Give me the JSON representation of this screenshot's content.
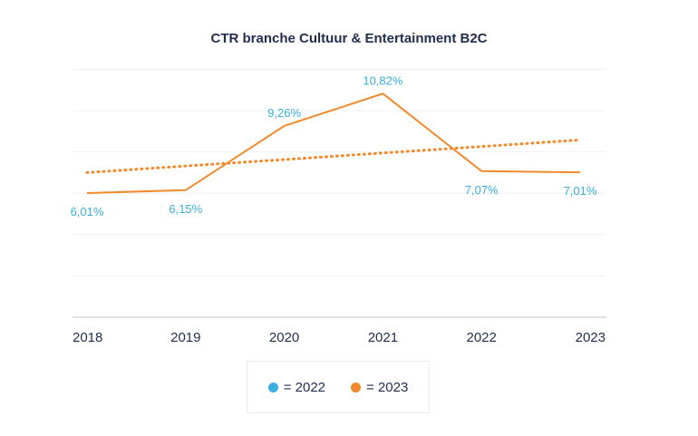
{
  "chart_data": {
    "type": "line",
    "title": "CTR branche Cultuur & Entertainment B2C",
    "categories": [
      "2018",
      "2019",
      "2020",
      "2021",
      "2022",
      "2023"
    ],
    "series": [
      {
        "name": "2023",
        "color": "#f08a2c",
        "values": [
          6.01,
          6.15,
          9.26,
          10.82,
          7.07,
          7.01
        ],
        "labels": [
          "6,01%",
          "6,15%",
          "9,26%",
          "10,82%",
          "7,07%",
          "7,01%"
        ],
        "label_color": "#3aaee0"
      }
    ],
    "trendline": {
      "style": "dotted",
      "color": "#f08a2c",
      "values": [
        7.0,
        7.32,
        7.63,
        7.95,
        8.26,
        8.58
      ]
    },
    "ylim": [
      0,
      12
    ],
    "grid": true,
    "legend": {
      "position": "bottom",
      "items": [
        {
          "label": "= 2022",
          "color": "#3aaee0"
        },
        {
          "label": "= 2023",
          "color": "#f08a2c"
        }
      ]
    }
  }
}
